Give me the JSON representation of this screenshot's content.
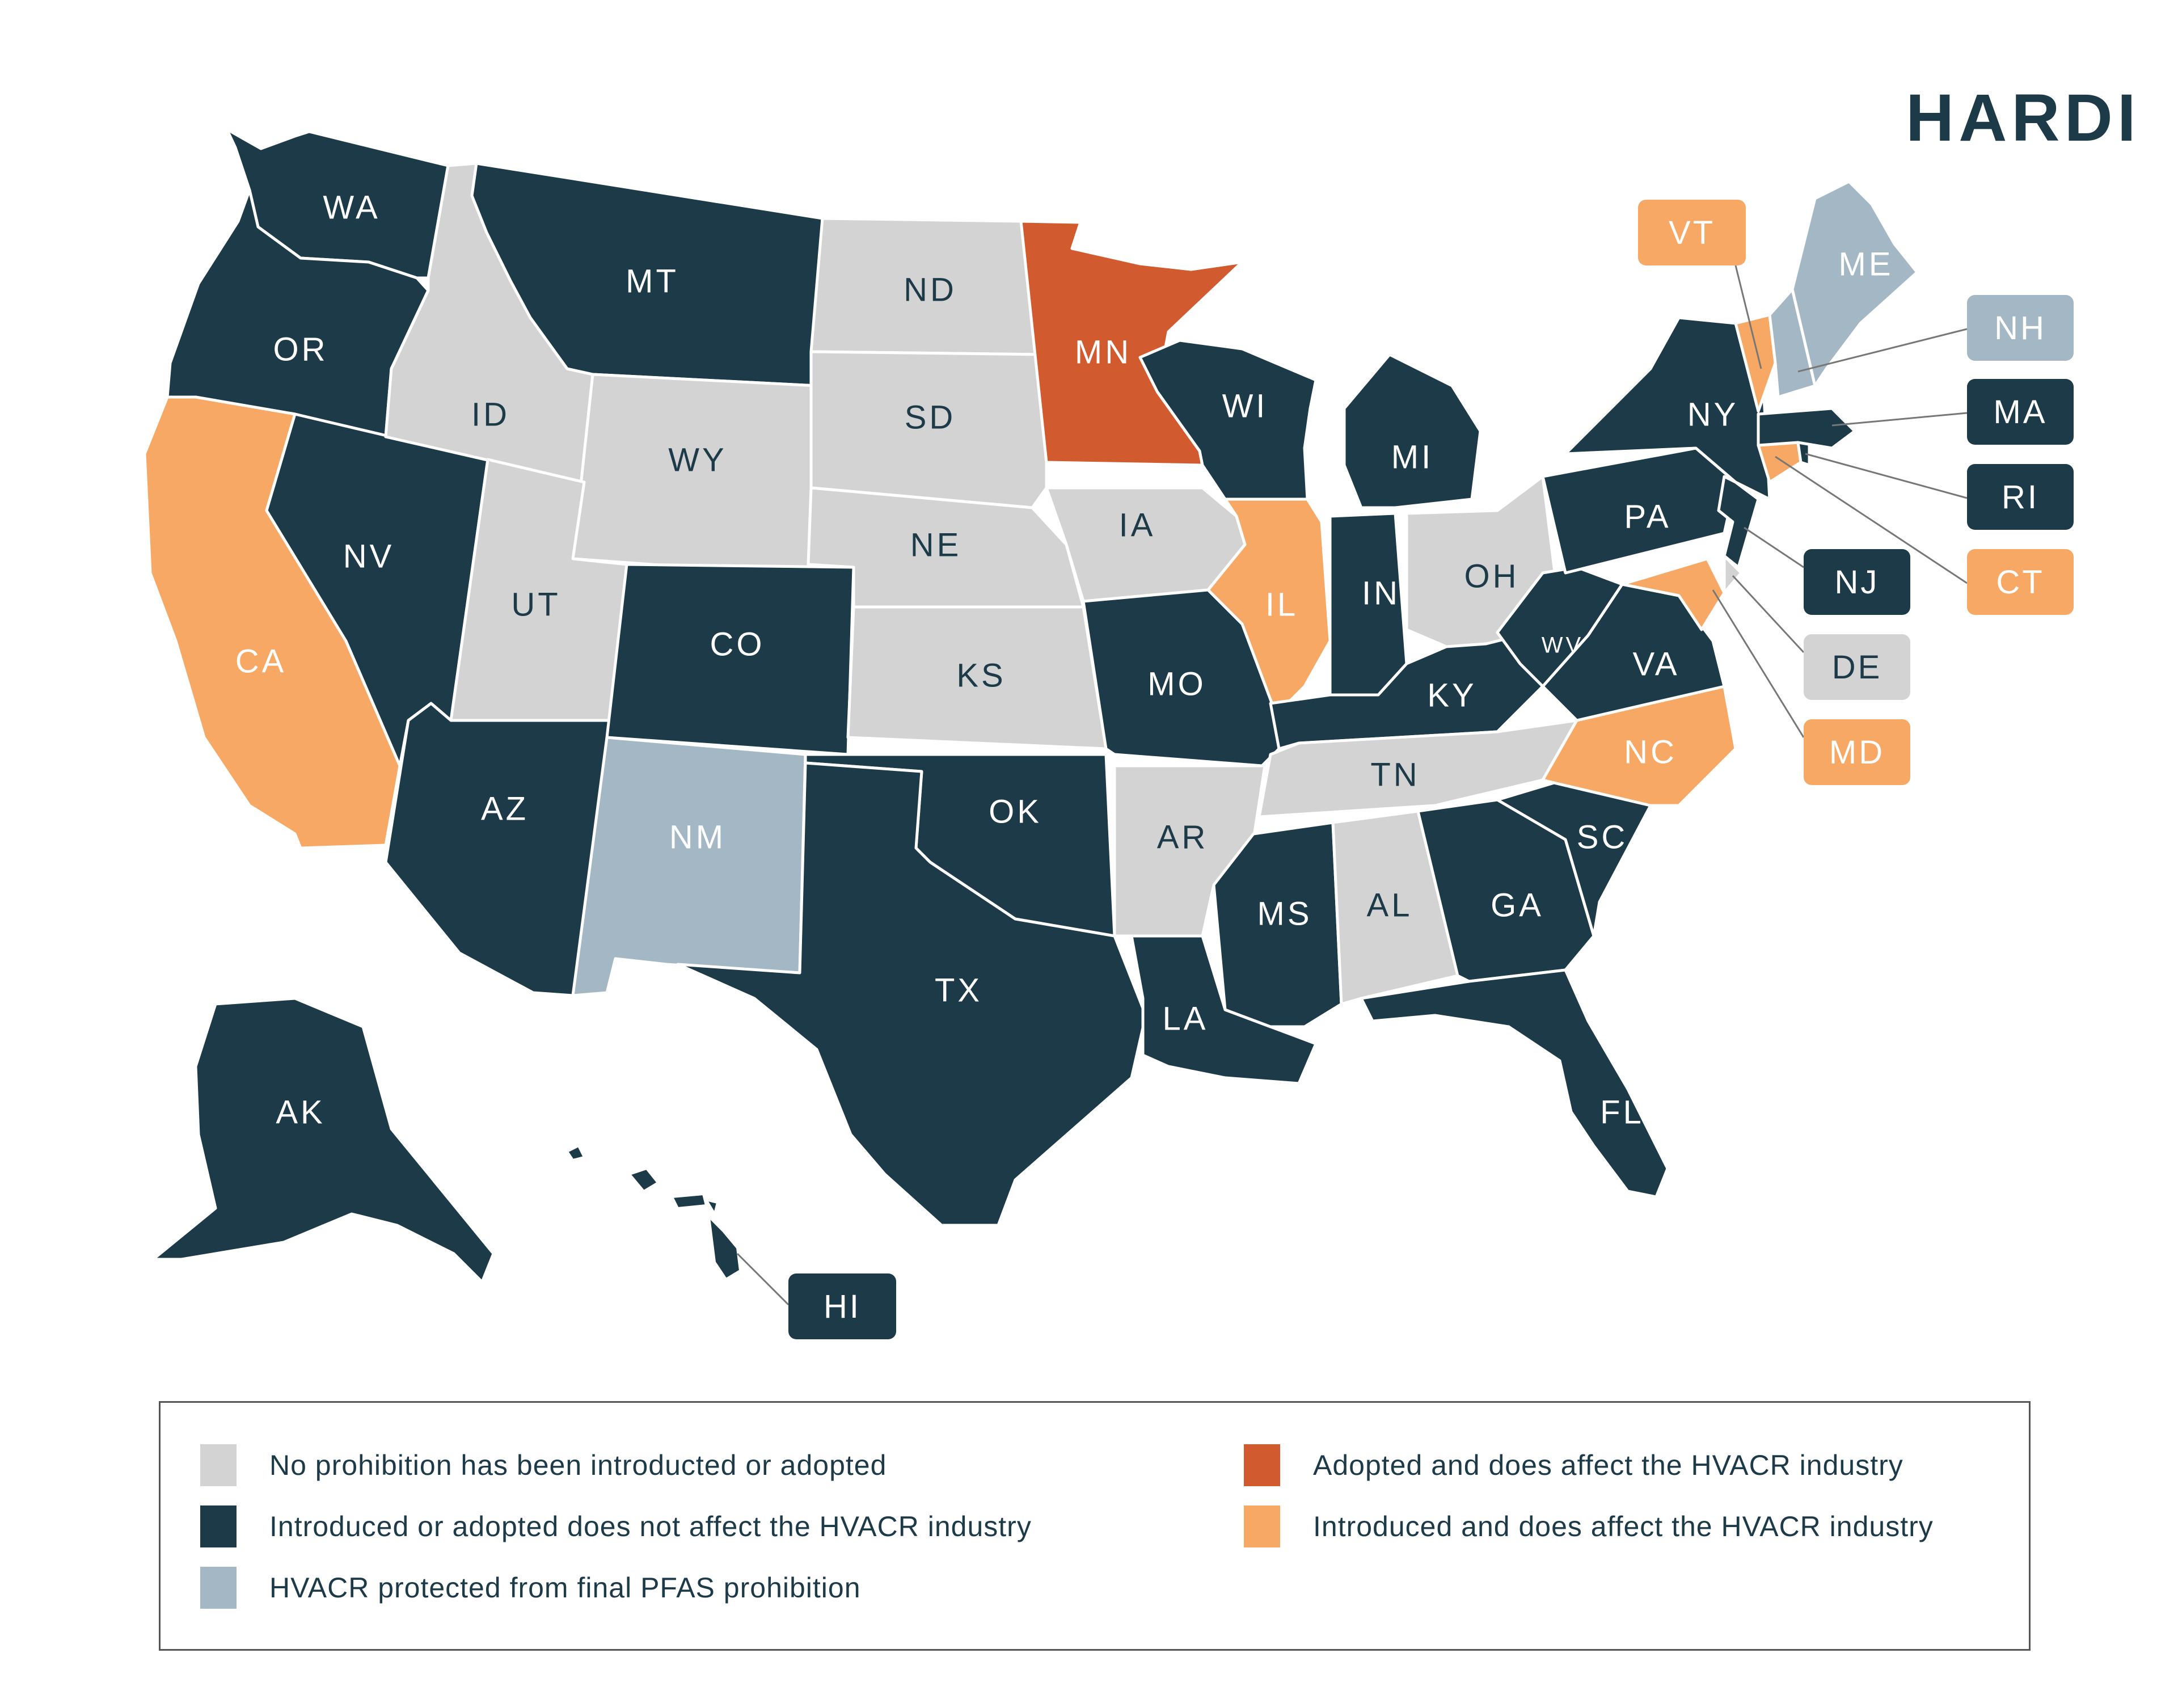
{
  "brand": {
    "logo_text": "HARDI"
  },
  "colors": {
    "none": "#d3d3d3",
    "not_affect": "#1d3a48",
    "protected": "#a3b8c4",
    "adopted_affect": "#d15b2f",
    "introduced_affect": "#f7a865",
    "border": "#ffffff",
    "text_on_dark": "#ffffff",
    "text_on_light": "#1d3a48",
    "leader_line": "#777777"
  },
  "legend": [
    {
      "status": "none",
      "label": "No prohibition has been introducted or adopted"
    },
    {
      "status": "not_affect",
      "label": "Introduced or adopted does not affect the HVACR industry"
    },
    {
      "status": "protected",
      "label": "HVACR protected from final PFAS prohibition"
    },
    {
      "status": "adopted_affect",
      "label": "Adopted and does affect the HVACR industry"
    },
    {
      "status": "introduced_affect",
      "label": "Introduced and does affect the HVACR industry"
    }
  ],
  "states": [
    {
      "abbr": "WA",
      "status": "not_affect"
    },
    {
      "abbr": "OR",
      "status": "not_affect"
    },
    {
      "abbr": "CA",
      "status": "introduced_affect"
    },
    {
      "abbr": "NV",
      "status": "not_affect"
    },
    {
      "abbr": "ID",
      "status": "none"
    },
    {
      "abbr": "MT",
      "status": "not_affect"
    },
    {
      "abbr": "WY",
      "status": "none"
    },
    {
      "abbr": "UT",
      "status": "none"
    },
    {
      "abbr": "AZ",
      "status": "not_affect"
    },
    {
      "abbr": "CO",
      "status": "not_affect"
    },
    {
      "abbr": "NM",
      "status": "protected"
    },
    {
      "abbr": "ND",
      "status": "none"
    },
    {
      "abbr": "SD",
      "status": "none"
    },
    {
      "abbr": "NE",
      "status": "none"
    },
    {
      "abbr": "KS",
      "status": "none"
    },
    {
      "abbr": "OK",
      "status": "not_affect"
    },
    {
      "abbr": "TX",
      "status": "not_affect"
    },
    {
      "abbr": "MN",
      "status": "adopted_affect"
    },
    {
      "abbr": "IA",
      "status": "none"
    },
    {
      "abbr": "MO",
      "status": "not_affect"
    },
    {
      "abbr": "AR",
      "status": "none"
    },
    {
      "abbr": "LA",
      "status": "not_affect"
    },
    {
      "abbr": "WI",
      "status": "not_affect"
    },
    {
      "abbr": "IL",
      "status": "introduced_affect"
    },
    {
      "abbr": "MI",
      "status": "not_affect"
    },
    {
      "abbr": "IN",
      "status": "not_affect"
    },
    {
      "abbr": "OH",
      "status": "none"
    },
    {
      "abbr": "KY",
      "status": "not_affect"
    },
    {
      "abbr": "TN",
      "status": "none"
    },
    {
      "abbr": "MS",
      "status": "not_affect"
    },
    {
      "abbr": "AL",
      "status": "none"
    },
    {
      "abbr": "GA",
      "status": "not_affect"
    },
    {
      "abbr": "FL",
      "status": "not_affect"
    },
    {
      "abbr": "SC",
      "status": "not_affect"
    },
    {
      "abbr": "NC",
      "status": "introduced_affect"
    },
    {
      "abbr": "VA",
      "status": "not_affect"
    },
    {
      "abbr": "WV",
      "status": "not_affect"
    },
    {
      "abbr": "PA",
      "status": "not_affect"
    },
    {
      "abbr": "NY",
      "status": "not_affect"
    },
    {
      "abbr": "NJ",
      "status": "not_affect"
    },
    {
      "abbr": "DE",
      "status": "none"
    },
    {
      "abbr": "MD",
      "status": "introduced_affect"
    },
    {
      "abbr": "CT",
      "status": "introduced_affect"
    },
    {
      "abbr": "RI",
      "status": "not_affect"
    },
    {
      "abbr": "MA",
      "status": "not_affect"
    },
    {
      "abbr": "VT",
      "status": "introduced_affect"
    },
    {
      "abbr": "NH",
      "status": "protected"
    },
    {
      "abbr": "ME",
      "status": "protected"
    },
    {
      "abbr": "AK",
      "status": "not_affect"
    },
    {
      "abbr": "HI",
      "status": "not_affect"
    }
  ]
}
